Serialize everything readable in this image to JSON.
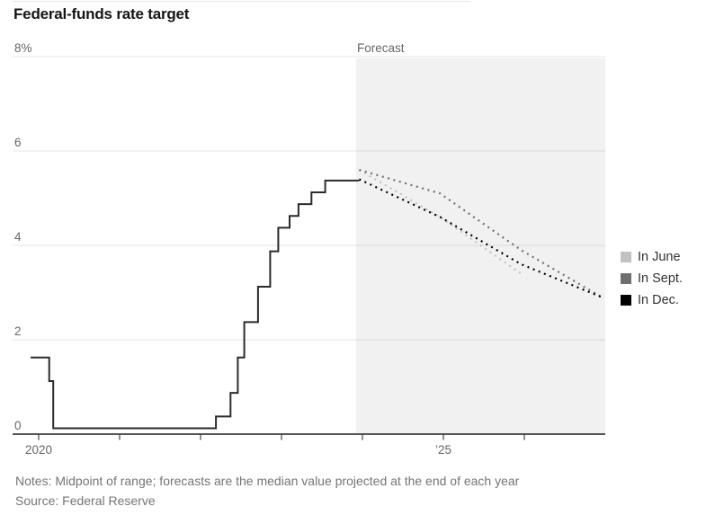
{
  "notes": "Notes: Midpoint of range; forecasts are the median value projected at the end of each year",
  "source": "Source: Federal Reserve",
  "chart_data": {
    "type": "line",
    "title": "Federal-funds rate target",
    "grid": "horizontal",
    "legend_position": "right",
    "ylim": [
      0,
      8
    ],
    "xlim": [
      2019.68,
      2027.0
    ],
    "yticks": [
      {
        "value": 8,
        "label": "8%"
      },
      {
        "value": 6,
        "label": "6"
      },
      {
        "value": 4,
        "label": "4"
      },
      {
        "value": 2,
        "label": "2"
      },
      {
        "value": 0,
        "label": "0"
      }
    ],
    "xticks": [
      {
        "value": 2020,
        "label": "2020"
      },
      {
        "value": 2021,
        "label": ""
      },
      {
        "value": 2022,
        "label": ""
      },
      {
        "value": 2023,
        "label": ""
      },
      {
        "value": 2024,
        "label": ""
      },
      {
        "value": 2025,
        "label": "’25"
      },
      {
        "value": 2026,
        "label": ""
      }
    ],
    "forecast_region": {
      "start": 2023.92,
      "end": 2027.0,
      "label": "Forecast"
    },
    "actual_series": {
      "style": "step",
      "color": "#2b2b2b",
      "points": [
        {
          "t": 2019.9,
          "v": 1.625
        },
        {
          "t": 2020.13,
          "v": 1.125
        },
        {
          "t": 2020.18,
          "v": 0.125
        },
        {
          "t": 2022.19,
          "v": 0.375
        },
        {
          "t": 2022.37,
          "v": 0.875
        },
        {
          "t": 2022.46,
          "v": 1.625
        },
        {
          "t": 2022.54,
          "v": 2.375
        },
        {
          "t": 2022.71,
          "v": 3.125
        },
        {
          "t": 2022.86,
          "v": 3.875
        },
        {
          "t": 2022.96,
          "v": 4.375
        },
        {
          "t": 2023.1,
          "v": 4.625
        },
        {
          "t": 2023.21,
          "v": 4.875
        },
        {
          "t": 2023.37,
          "v": 5.125
        },
        {
          "t": 2023.54,
          "v": 5.375
        }
      ],
      "end_t": 2023.96
    },
    "forecast_series": [
      {
        "name": "In June",
        "style": "dotted",
        "color": "#c2c2c2",
        "points": [
          {
            "t": 2023.96,
            "v": 5.6
          },
          {
            "t": 2024.96,
            "v": 4.6
          },
          {
            "t": 2025.96,
            "v": 3.4
          }
        ]
      },
      {
        "name": "In Sept.",
        "style": "dotted",
        "color": "#6f6f6f",
        "points": [
          {
            "t": 2023.96,
            "v": 5.6
          },
          {
            "t": 2024.96,
            "v": 5.1
          },
          {
            "t": 2025.96,
            "v": 3.9
          },
          {
            "t": 2026.96,
            "v": 2.9
          }
        ]
      },
      {
        "name": "In Dec.",
        "style": "dotted",
        "color": "#000000",
        "points": [
          {
            "t": 2023.96,
            "v": 5.4
          },
          {
            "t": 2024.96,
            "v": 4.6
          },
          {
            "t": 2025.96,
            "v": 3.6
          },
          {
            "t": 2026.96,
            "v": 2.9
          }
        ]
      }
    ],
    "colors": {
      "forecast_region_bg": "#f1f1f1",
      "gridline": "#e4e4e4",
      "axis": "#1f1f1f",
      "tick_label": "#666666"
    }
  }
}
